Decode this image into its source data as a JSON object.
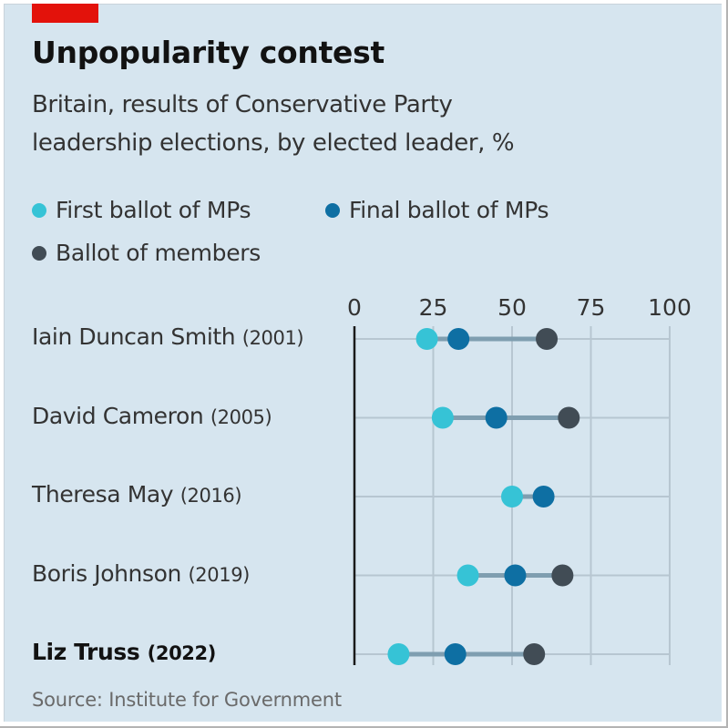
{
  "header": {
    "title": "Unpopularity contest",
    "subtitle_line1": "Britain, results of Conservative Party",
    "subtitle_line2": "leadership elections, by elected leader, %"
  },
  "legend": [
    {
      "label": "First ballot of MPs",
      "color": "#36c3d6"
    },
    {
      "label": "Final ballot of MPs",
      "color": "#0e6fa3"
    },
    {
      "label": "Ballot of members",
      "color": "#414c55"
    }
  ],
  "footer": {
    "source": "Source: Institute for Government"
  },
  "colors": {
    "accent_red": "#e3120b",
    "background": "#d6e5ef",
    "connector": "#7f9eb0",
    "gridline": "#b7c6d1",
    "axis": "#1a1a1a"
  },
  "chart_data": {
    "type": "scatter",
    "subtype": "dot-plot",
    "title": "Unpopularity contest",
    "subtitle": "Britain, results of Conservative Party leadership elections, by elected leader, %",
    "xlabel": "",
    "ylabel": "",
    "xlim": [
      0,
      100
    ],
    "x_ticks": [
      "0",
      "25",
      "50",
      "75",
      "100"
    ],
    "x_tick_values": [
      0,
      25,
      50,
      75,
      100
    ],
    "grid": true,
    "legend_position": "top-left",
    "categories": [
      {
        "name": "Iain Duncan Smith",
        "year": "(2001)",
        "bold": false
      },
      {
        "name": "David Cameron",
        "year": "(2005)",
        "bold": false
      },
      {
        "name": "Theresa May",
        "year": "(2016)",
        "bold": false
      },
      {
        "name": "Boris Johnson",
        "year": "(2019)",
        "bold": false
      },
      {
        "name": "Liz Truss",
        "year": "(2022)",
        "bold": true
      }
    ],
    "series": [
      {
        "name": "First ballot of MPs",
        "color": "#36c3d6",
        "values": [
          23,
          28,
          50,
          36,
          14
        ]
      },
      {
        "name": "Final ballot of MPs",
        "color": "#0e6fa3",
        "values": [
          33,
          45,
          60,
          51,
          32
        ]
      },
      {
        "name": "Ballot of members",
        "color": "#414c55",
        "values": [
          61,
          68,
          null,
          66,
          57
        ]
      }
    ],
    "source": "Source: Institute for Government"
  }
}
